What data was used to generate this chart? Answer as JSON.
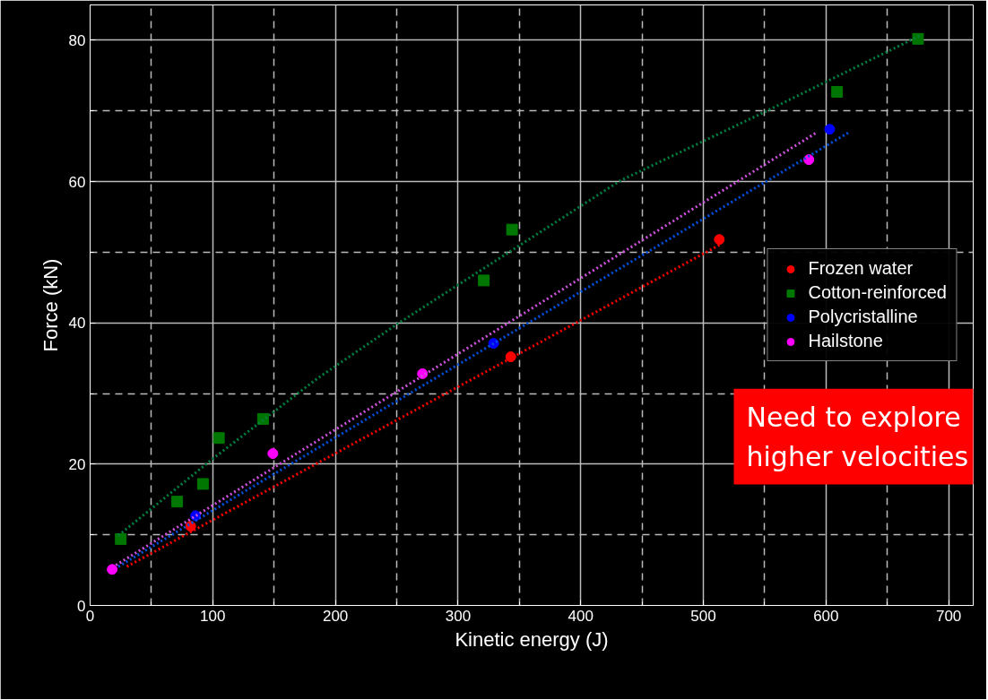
{
  "chart_data": {
    "type": "scatter",
    "xlabel": "Kinetic energy (J)",
    "ylabel": "Force (kN)",
    "xlim": [
      0,
      720
    ],
    "ylim": [
      0,
      85
    ],
    "xticks": [
      0,
      {
        "value": 50,
        "label": null
      },
      100,
      {
        "value": 150,
        "label": null
      },
      200,
      {
        "value": 250,
        "label": null
      },
      300,
      {
        "value": 350,
        "label": null
      },
      400,
      {
        "value": 450,
        "label": null
      },
      500,
      {
        "value": 550,
        "label": null
      },
      600,
      {
        "value": 650,
        "label": null
      },
      700
    ],
    "yticks": [
      0,
      {
        "value": 10,
        "label": null
      },
      20,
      {
        "value": 30,
        "label": null
      },
      40,
      {
        "value": 50,
        "label": null
      },
      60,
      {
        "value": 70,
        "label": null
      },
      80
    ],
    "grid": true,
    "legend": "right",
    "series": [
      {
        "name": "Frozen water",
        "color": "#ff0000",
        "marker": "circle",
        "x": [
          82,
          343,
          513
        ],
        "values": [
          11.2,
          35.2,
          51.8
        ]
      },
      {
        "name": "Cotton-reinforced",
        "color": "#007700",
        "marker": "square",
        "x": [
          25,
          71,
          92,
          105,
          141,
          321,
          344,
          609,
          675
        ],
        "values": [
          9.4,
          14.7,
          17.2,
          23.7,
          26.4,
          46,
          53.2,
          72.7,
          80.2
        ]
      },
      {
        "name": "Polycristalline",
        "color": "#0000ff",
        "marker": "circle",
        "x": [
          86,
          329,
          603
        ],
        "values": [
          12.7,
          37.1,
          67.4
        ]
      },
      {
        "name": "Hailstone",
        "color": "#ff00ff",
        "marker": "circle",
        "x": [
          18,
          149,
          271,
          586
        ],
        "values": [
          5.1,
          21.5,
          32.8,
          63.1
        ]
      },
      {
        "type": "line",
        "color": "#ff0000",
        "line_style": "dotted",
        "x": [
          30,
          515
        ],
        "values": [
          5.5,
          51.2
        ]
      },
      {
        "type": "line",
        "color": "#008040",
        "line_style": "dotted",
        "x": [
          23,
          50,
          101,
          185,
          251,
          432,
          547,
          676
        ],
        "values": [
          9.9,
          13.7,
          20.9,
          32.1,
          39.9,
          60.1,
          69.6,
          80.6
        ]
      },
      {
        "type": "line",
        "color": "#0050e0",
        "line_style": "dotted",
        "x": [
          23,
          618
        ],
        "values": [
          5.5,
          66.9
        ]
      },
      {
        "type": "line",
        "color": "#d050e0",
        "line_style": "dotted",
        "x": [
          21,
          592
        ],
        "values": [
          5.7,
          66.9
        ]
      }
    ],
    "annotations": [
      "Need to explore higher velocities"
    ]
  }
}
